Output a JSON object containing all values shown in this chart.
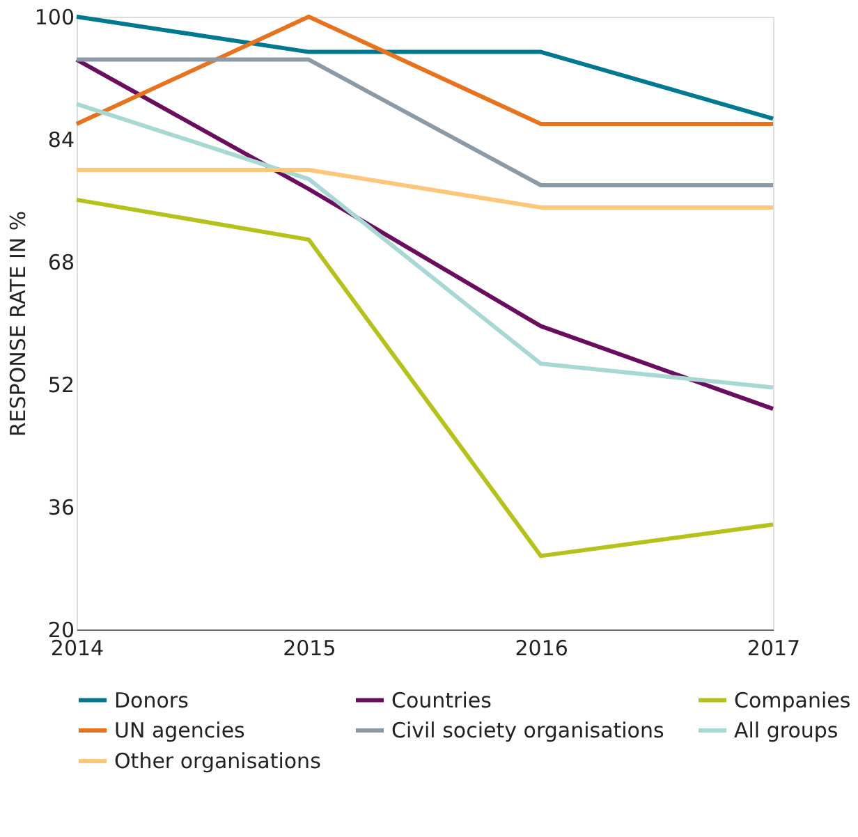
{
  "chart_data": {
    "type": "line",
    "ylabel": "RESPONSE RATE IN %",
    "x": [
      2014,
      2015,
      2016,
      2017
    ],
    "xlim": [
      2014,
      2017
    ],
    "xticks": [
      2014,
      2015,
      2016,
      2017
    ],
    "ylim": [
      20,
      100
    ],
    "yticks": [
      20,
      36,
      52,
      68,
      84,
      100
    ],
    "grid": false,
    "legend": "bottom",
    "marker": "none",
    "line_style": "solid",
    "series": [
      {
        "name": "Donors",
        "color": "#00788f",
        "values": [
          100,
          95.4,
          95.4,
          86.7
        ]
      },
      {
        "name": "Countries",
        "color": "#6b0d5e",
        "values": [
          94.4,
          77.5,
          59.6,
          48.8
        ]
      },
      {
        "name": "Companies",
        "color": "#b5c21c",
        "values": [
          76.1,
          70.9,
          29.6,
          33.7
        ]
      },
      {
        "name": "UN agencies",
        "color": "#e8731e",
        "values": [
          86,
          100,
          86,
          86
        ]
      },
      {
        "name": "Civil society organisations",
        "color": "#8c9aa8",
        "values": [
          94.4,
          94.4,
          78,
          78
        ]
      },
      {
        "name": "All groups",
        "color": "#a8d8d4",
        "values": [
          88.6,
          78.8,
          54.7,
          51.6
        ]
      },
      {
        "name": "Other organisations",
        "color": "#fdc77a",
        "values": [
          80,
          80,
          75.1,
          75.1
        ]
      }
    ]
  }
}
